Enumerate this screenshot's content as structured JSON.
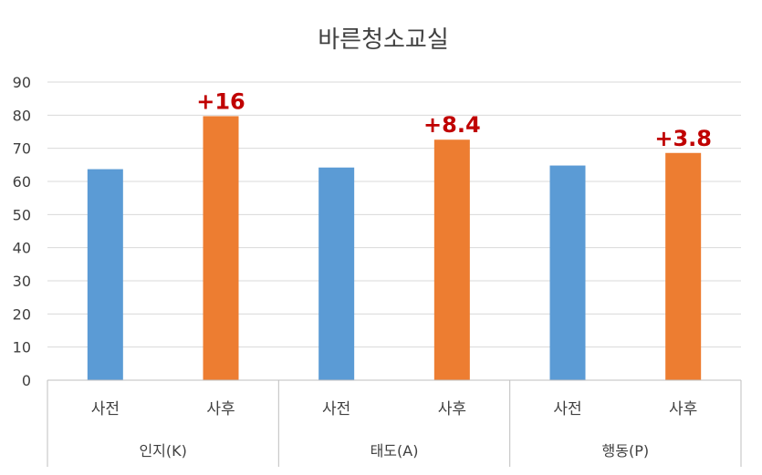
{
  "chart_data": {
    "type": "bar",
    "title": "바른청소교실",
    "ylim": [
      0,
      90
    ],
    "yticks": [
      0,
      10,
      20,
      30,
      40,
      50,
      60,
      70,
      80,
      90
    ],
    "grid": true,
    "groups": [
      {
        "label": "인지(K)",
        "bars": [
          {
            "label": "사전",
            "value": 63.7,
            "color": "#5b9bd5"
          },
          {
            "label": "사후",
            "value": 79.7,
            "color": "#ed7d31"
          }
        ],
        "delta": "+16"
      },
      {
        "label": "태도(A)",
        "bars": [
          {
            "label": "사전",
            "value": 64.2,
            "color": "#5b9bd5"
          },
          {
            "label": "사후",
            "value": 72.6,
            "color": "#ed7d31"
          }
        ],
        "delta": "+8.4"
      },
      {
        "label": "행동(P)",
        "bars": [
          {
            "label": "사전",
            "value": 64.8,
            "color": "#5b9bd5"
          },
          {
            "label": "사후",
            "value": 68.6,
            "color": "#ed7d31"
          }
        ],
        "delta": "+3.8"
      }
    ]
  }
}
